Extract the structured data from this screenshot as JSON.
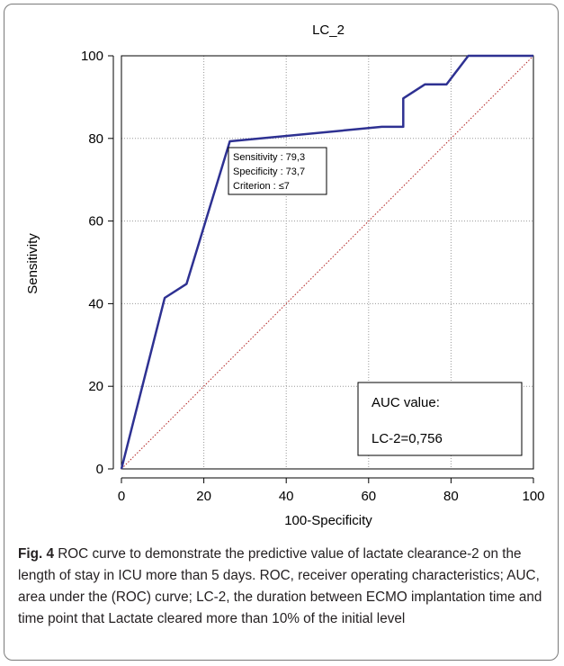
{
  "chart_data": {
    "type": "line",
    "title": "LC_2",
    "xlabel": "100-Specificity",
    "ylabel": "Sensitivity",
    "xlim": [
      0,
      100
    ],
    "ylim": [
      0,
      100
    ],
    "xticks": [
      0,
      20,
      40,
      60,
      80,
      100
    ],
    "yticks": [
      0,
      20,
      40,
      60,
      80,
      100
    ],
    "grid": true,
    "series": [
      {
        "type": "line",
        "color": "#2e3192",
        "x": [
          0,
          10.5,
          15.8,
          26.3,
          63.2,
          68.4,
          68.4,
          73.7,
          78.9,
          84.2,
          100
        ],
        "y": [
          0,
          41.4,
          44.8,
          79.3,
          82.8,
          82.8,
          89.7,
          93.1,
          93.1,
          100,
          100
        ]
      },
      {
        "type": "reference-diagonal",
        "color": "#b22222",
        "x": [
          0,
          100
        ],
        "y": [
          0,
          100
        ]
      }
    ],
    "annotations": [
      {
        "lines": [
          "Sensitivity : 79,3",
          "Specificity : 73,7",
          "Criterion : ≤7"
        ],
        "anchor": {
          "x": 26.3,
          "y": 79.3
        }
      }
    ],
    "auc_box": {
      "title": "AUC value:",
      "value": "LC-2=0,756"
    }
  },
  "caption": {
    "label": "Fig. 4",
    "text": " ROC curve to demonstrate the predictive value of lactate clearance-2 on the length of stay in ICU more than 5 days. ROC, receiver operating characteristics; AUC, area under the (ROC) curve; LC-2, the duration between ECMO implantation time and time point that Lactate cleared more than 10% of the initial level"
  }
}
